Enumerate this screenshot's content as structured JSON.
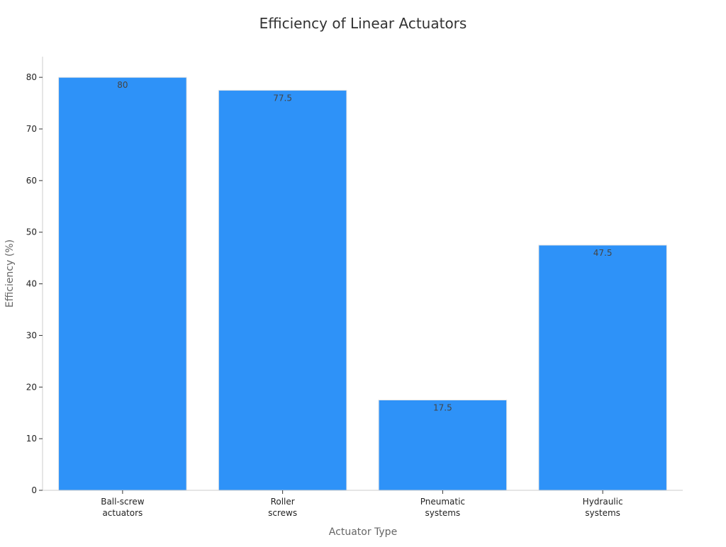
{
  "chart_data": {
    "type": "bar",
    "title": "Efficiency of Linear Actuators",
    "xlabel": "Actuator Type",
    "ylabel": "Efficiency (%)",
    "categories": [
      [
        "Ball-screw",
        "actuators"
      ],
      [
        "Roller",
        "screws"
      ],
      [
        "Pneumatic",
        "systems"
      ],
      [
        "Hydraulic",
        "systems"
      ]
    ],
    "values": [
      80,
      77.5,
      17.5,
      47.5
    ],
    "data_labels": [
      "80",
      "77.5",
      "17.5",
      "47.5"
    ],
    "ylim": [
      0,
      84
    ],
    "yticks": [
      0,
      10,
      20,
      30,
      40,
      50,
      60,
      70,
      80
    ],
    "grid": false,
    "legend": "none",
    "bar_color": "#2e92f8",
    "bar_edge_color": "#e6e6e6"
  }
}
